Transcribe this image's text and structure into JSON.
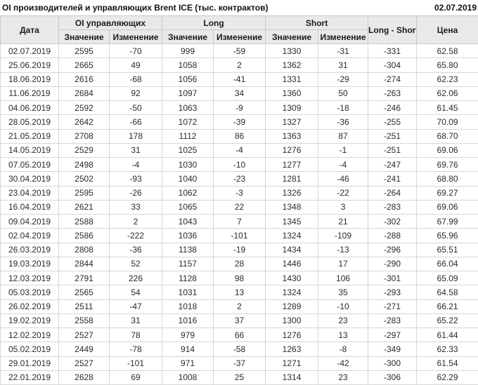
{
  "header": {
    "title": "OI производителей и управляющих Brent ICE (тыс. контрактов)",
    "date": "02.07.2019"
  },
  "table": {
    "col_groups": {
      "date": "Дата",
      "oi_managers": "OI управляющих",
      "long": "Long",
      "short": "Short",
      "long_short": "Long - Short",
      "price": "Цена"
    },
    "sub_headers": [
      "Значение",
      "Изменение",
      "Значение",
      "Изменение",
      "Значение",
      "Изменение"
    ]
  },
  "colors": {
    "positive": "#1b9b1b",
    "negative": "#cc1a1a",
    "header_bg": "#e9e9e9",
    "border": "#c9c9c9"
  },
  "chart_data": {
    "type": "table",
    "title": "OI производителей и управляющих Brent ICE (тыс. контрактов)",
    "as_of_date": "02.07.2019",
    "columns": [
      "Дата",
      "OI управляющих Значение",
      "OI управляющих Изменение",
      "Long Значение",
      "Long Изменение",
      "Short Значение",
      "Short Изменение",
      "Long - Short",
      "Цена"
    ],
    "rows": [
      [
        "02.07.2019",
        "2595",
        "-70",
        "999",
        "-59",
        "1330",
        "-31",
        "-331",
        "62.58"
      ],
      [
        "25.06.2019",
        "2665",
        "49",
        "1058",
        "2",
        "1362",
        "31",
        "-304",
        "65.80"
      ],
      [
        "18.06.2019",
        "2616",
        "-68",
        "1056",
        "-41",
        "1331",
        "-29",
        "-274",
        "62.23"
      ],
      [
        "11.06.2019",
        "2684",
        "92",
        "1097",
        "34",
        "1360",
        "50",
        "-263",
        "62.06"
      ],
      [
        "04.06.2019",
        "2592",
        "-50",
        "1063",
        "-9",
        "1309",
        "-18",
        "-246",
        "61.45"
      ],
      [
        "28.05.2019",
        "2642",
        "-66",
        "1072",
        "-39",
        "1327",
        "-36",
        "-255",
        "70.09"
      ],
      [
        "21.05.2019",
        "2708",
        "178",
        "1112",
        "86",
        "1363",
        "87",
        "-251",
        "68.70"
      ],
      [
        "14.05.2019",
        "2529",
        "31",
        "1025",
        "-4",
        "1276",
        "-1",
        "-251",
        "69.06"
      ],
      [
        "07.05.2019",
        "2498",
        "-4",
        "1030",
        "-10",
        "1277",
        "-4",
        "-247",
        "69.76"
      ],
      [
        "30.04.2019",
        "2502",
        "-93",
        "1040",
        "-23",
        "1281",
        "-46",
        "-241",
        "68.80"
      ],
      [
        "23.04.2019",
        "2595",
        "-26",
        "1062",
        "-3",
        "1326",
        "-22",
        "-264",
        "69.27"
      ],
      [
        "16.04.2019",
        "2621",
        "33",
        "1065",
        "22",
        "1348",
        "3",
        "-283",
        "69.06"
      ],
      [
        "09.04.2019",
        "2588",
        "2",
        "1043",
        "7",
        "1345",
        "21",
        "-302",
        "67.99"
      ],
      [
        "02.04.2019",
        "2586",
        "-222",
        "1036",
        "-101",
        "1324",
        "-109",
        "-288",
        "65.96"
      ],
      [
        "26.03.2019",
        "2808",
        "-36",
        "1138",
        "-19",
        "1434",
        "-13",
        "-296",
        "65.51"
      ],
      [
        "19.03.2019",
        "2844",
        "52",
        "1157",
        "28",
        "1446",
        "17",
        "-290",
        "66.04"
      ],
      [
        "12.03.2019",
        "2791",
        "226",
        "1128",
        "98",
        "1430",
        "106",
        "-301",
        "65.09"
      ],
      [
        "05.03.2019",
        "2565",
        "54",
        "1031",
        "13",
        "1324",
        "35",
        "-293",
        "64.58"
      ],
      [
        "26.02.2019",
        "2511",
        "-47",
        "1018",
        "2",
        "1289",
        "-10",
        "-271",
        "66.21"
      ],
      [
        "19.02.2019",
        "2558",
        "31",
        "1016",
        "37",
        "1300",
        "23",
        "-283",
        "65.22"
      ],
      [
        "12.02.2019",
        "2527",
        "78",
        "979",
        "66",
        "1276",
        "13",
        "-297",
        "61.44"
      ],
      [
        "05.02.2019",
        "2449",
        "-78",
        "914",
        "-58",
        "1263",
        "-8",
        "-349",
        "62.33"
      ],
      [
        "29.01.2019",
        "2527",
        "-101",
        "971",
        "-37",
        "1271",
        "-42",
        "-300",
        "61.54"
      ],
      [
        "22.01.2019",
        "2628",
        "69",
        "1008",
        "25",
        "1314",
        "23",
        "-306",
        "62.29"
      ]
    ]
  }
}
